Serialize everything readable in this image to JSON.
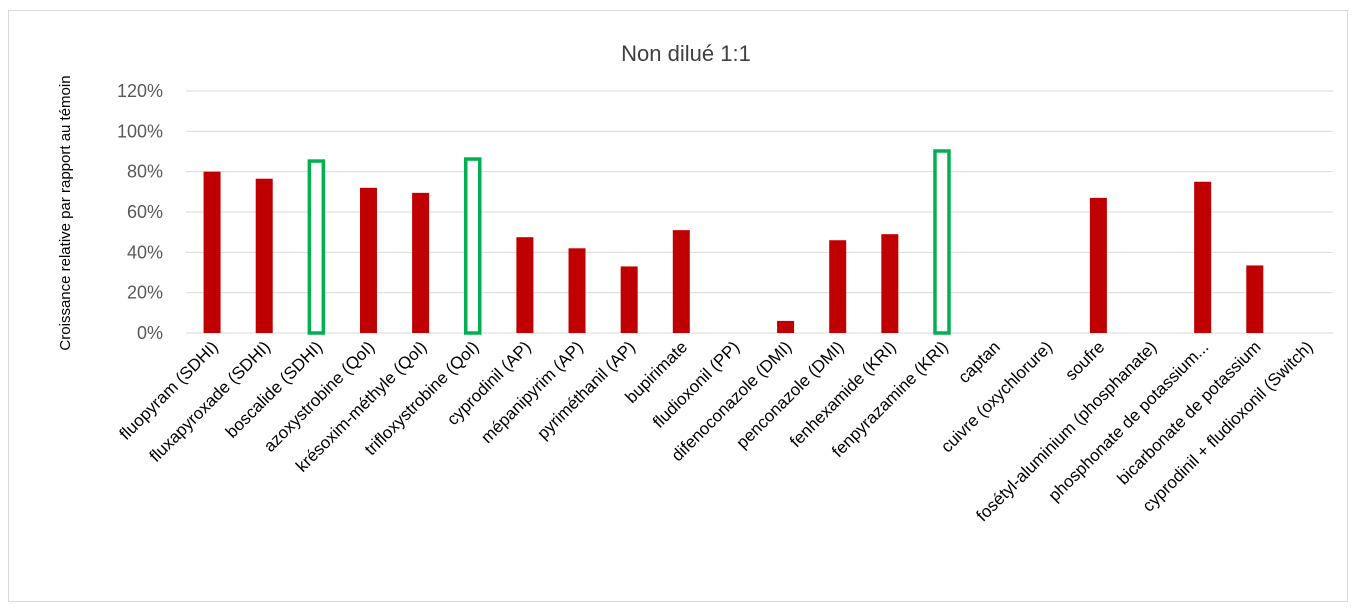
{
  "chart_data": {
    "type": "bar",
    "title": "Non dilué 1:1",
    "xlabel": "",
    "ylabel": "Croissance relative par rapport au témoin",
    "ylim": [
      0,
      120
    ],
    "yticks": [
      "0%",
      "20%",
      "40%",
      "60%",
      "80%",
      "100%",
      "120%"
    ],
    "grid": true,
    "legend": "none",
    "categories": [
      "fluopyram (SDHI)",
      "fluxapyroxade (SDHI)",
      "boscalide (SDHI)",
      "azoxystrobine (QoI)",
      "krésoxim-méthyle (QoI)",
      "trifloxystrobine (QoI)",
      "cyprodinil (AP)",
      "mépanipyrim (AP)",
      "pyriméthanil (AP)",
      "bupirimate",
      "fludioxonil (PP)",
      "difenoconazole (DMI)",
      "penconazole (DMI)",
      "fenhexamide (KRI)",
      "fenpyrazamine (KRI)",
      "captan",
      "cuivre (oxychlorure)",
      "soufre",
      "fosétyl-aluminium (phosphanate)",
      "phosphonate de potassium...",
      "bicarbonate de potassium",
      "cyprodinil + fludioxonil (Switch)"
    ],
    "values": [
      80,
      76.5,
      86,
      72,
      69.5,
      87,
      47.5,
      42,
      33,
      51,
      0,
      6,
      46,
      49,
      91,
      0,
      0,
      67,
      0,
      75,
      33.5,
      0
    ],
    "highlighted": [
      false,
      false,
      true,
      false,
      false,
      true,
      false,
      false,
      false,
      false,
      false,
      false,
      false,
      false,
      true,
      false,
      false,
      false,
      false,
      false,
      false,
      false
    ],
    "colors": {
      "bar": "#c00000",
      "highlight_outline": "#00b050",
      "grid": "#d9d9d9"
    }
  }
}
